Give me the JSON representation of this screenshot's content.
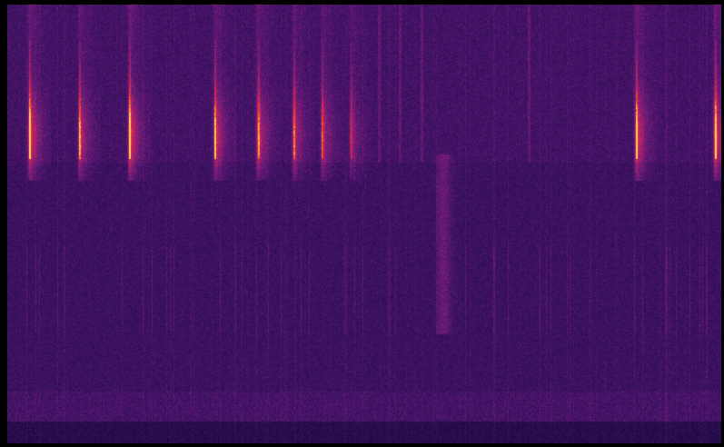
{
  "image": {
    "kind": "spectrogram",
    "colormap": "magma",
    "colors": {
      "background": "#000000",
      "noise_floor": "#2a0f4a",
      "mid": "#7a1f7a",
      "hot": "#d9204a",
      "peak": "#ffb000"
    },
    "axes_labeled": false,
    "grid": false,
    "legend": false
  },
  "features": {
    "loud_calls": [
      {
        "t": 0.03,
        "level": 1.0
      },
      {
        "t": 0.1,
        "level": 0.8
      },
      {
        "t": 0.17,
        "level": 1.0
      },
      {
        "t": 0.29,
        "level": 0.85
      },
      {
        "t": 0.35,
        "level": 0.8
      },
      {
        "t": 0.4,
        "level": 0.7
      },
      {
        "t": 0.44,
        "level": 0.65
      },
      {
        "t": 0.48,
        "level": 0.5
      },
      {
        "t": 0.88,
        "level": 0.95
      },
      {
        "t": 0.99,
        "level": 0.95
      }
    ],
    "faint_ticks": [
      0.52,
      0.55,
      0.58,
      0.73
    ],
    "broadband_event": {
      "t": 0.61,
      "level": 0.45
    },
    "low_band_noise": true
  }
}
